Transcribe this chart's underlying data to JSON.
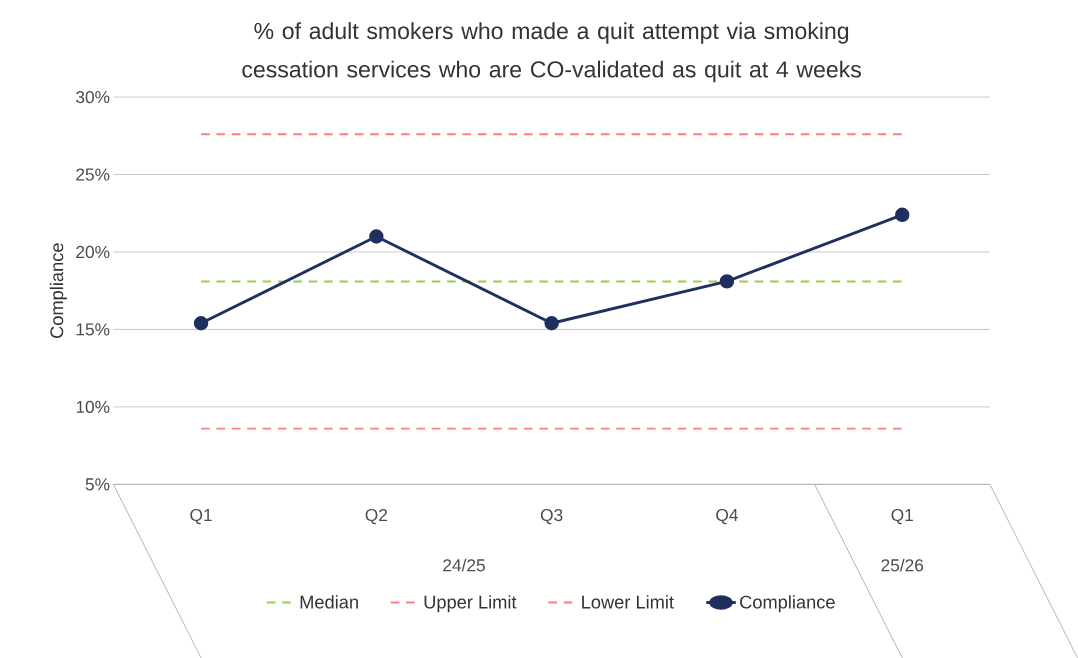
{
  "chart_data": {
    "type": "line",
    "title": "% of adult smokers who made a quit attempt via smoking cessation services who are CO-validated as quit at 4 weeks",
    "ylabel": "Compliance",
    "categories": [
      "Q1",
      "Q2",
      "Q3",
      "Q4",
      "Q1"
    ],
    "annotations": [
      "24/25",
      "25/26"
    ],
    "series": [
      {
        "name": "Median",
        "color": "#92d050",
        "line_style": "dashed",
        "marker": "none",
        "values": [
          18.1,
          18.1,
          18.1,
          18.1,
          18.1
        ]
      },
      {
        "name": "Upper Limit",
        "color": "#ff7c80",
        "line_style": "dashed",
        "marker": "none",
        "values": [
          27.6,
          27.6,
          27.6,
          27.6,
          27.6
        ]
      },
      {
        "name": "Lower Limit",
        "color": "#ff7c80",
        "line_style": "dashed",
        "marker": "none",
        "values": [
          8.6,
          8.6,
          8.6,
          8.6,
          8.6
        ]
      },
      {
        "name": "Compliance",
        "color": "#1f2f5f",
        "line_style": "solid",
        "marker": "circle",
        "values": [
          15.4,
          21.0,
          15.4,
          18.1,
          22.4
        ]
      }
    ],
    "ylim": [
      5,
      30
    ],
    "yticks": [
      {
        "value": 5,
        "label": "5%"
      },
      {
        "value": 10,
        "label": "10%"
      },
      {
        "value": 15,
        "label": "15%"
      },
      {
        "value": 20,
        "label": "20%"
      },
      {
        "value": 25,
        "label": "25%"
      },
      {
        "value": 30,
        "label": "30%"
      }
    ],
    "grid": "y",
    "legend": "bottom"
  }
}
